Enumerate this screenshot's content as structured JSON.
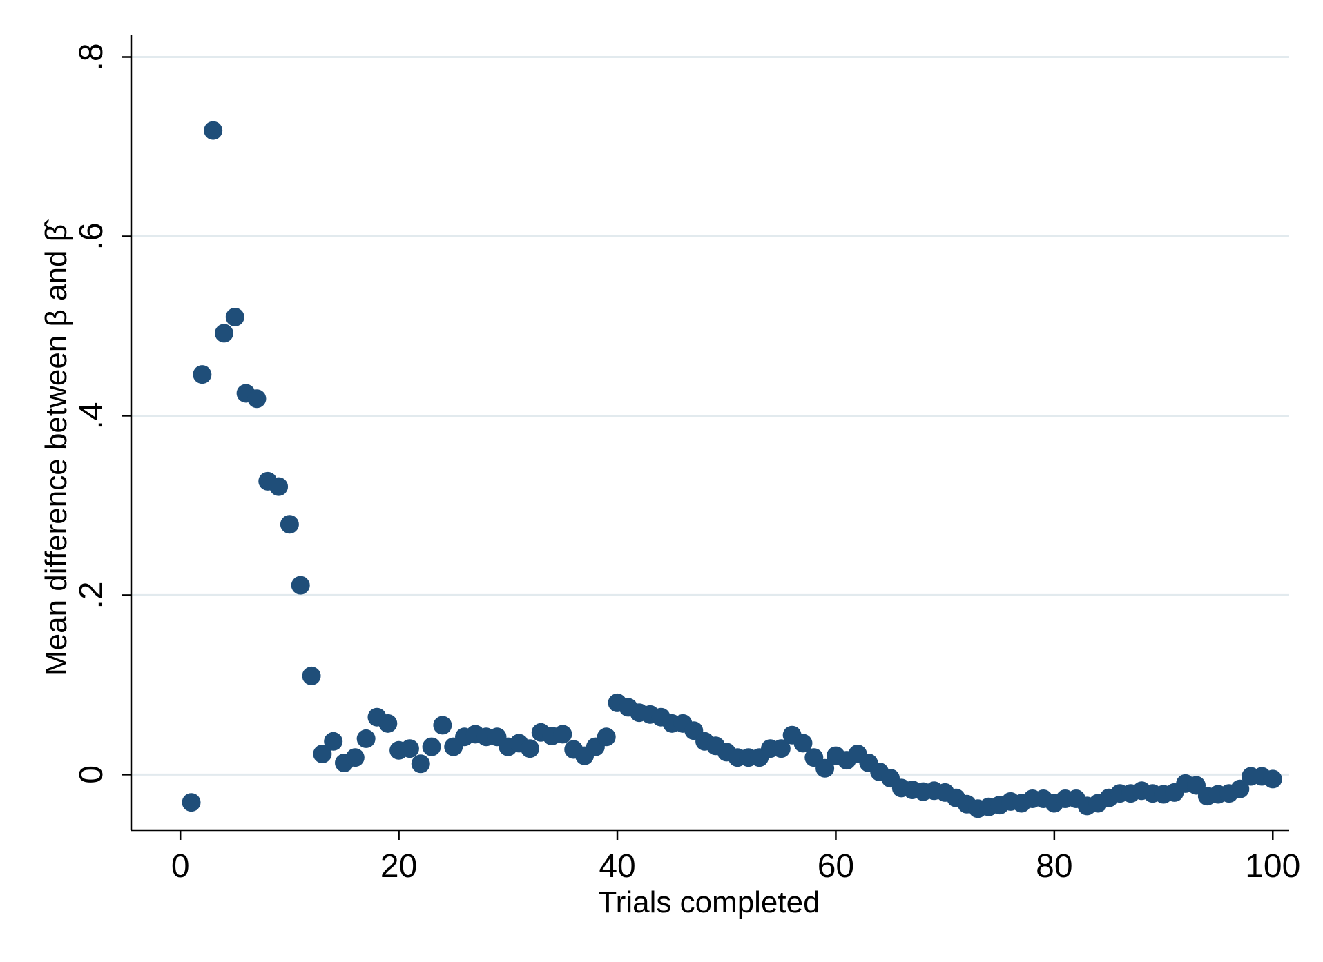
{
  "chart_data": {
    "type": "scatter",
    "title": "",
    "xlabel": "Trials completed",
    "ylabel": "Mean difference between β and β̂",
    "xlim": [
      -4.5,
      101.5
    ],
    "ylim": [
      -0.062,
      0.825
    ],
    "xticks": [
      0,
      20,
      40,
      60,
      80,
      100
    ],
    "xtick_labels": [
      "0",
      "20",
      "40",
      "60",
      "80",
      "100"
    ],
    "yticks": [
      0,
      0.2,
      0.4,
      0.6,
      0.8
    ],
    "ytick_labels": [
      "0",
      ".2",
      ".4",
      ".6",
      ".8"
    ],
    "grid": "horizontal",
    "colors": {
      "marker": "#1f4e79",
      "grid": "#e2eaee",
      "axis": "#000000",
      "background": "#ffffff"
    },
    "series": [
      {
        "name": "mean difference",
        "x": [
          1,
          2,
          3,
          4,
          5,
          6,
          7,
          8,
          9,
          10,
          11,
          12,
          13,
          14,
          15,
          16,
          17,
          18,
          19,
          20,
          21,
          22,
          23,
          24,
          25,
          26,
          27,
          28,
          29,
          30,
          31,
          32,
          33,
          34,
          35,
          36,
          37,
          38,
          39,
          40,
          41,
          42,
          43,
          44,
          45,
          46,
          47,
          48,
          49,
          50,
          51,
          52,
          53,
          54,
          55,
          56,
          57,
          58,
          59,
          60,
          61,
          62,
          63,
          64,
          65,
          66,
          67,
          68,
          69,
          70,
          71,
          72,
          73,
          74,
          75,
          76,
          77,
          78,
          79,
          80,
          81,
          82,
          83,
          84,
          85,
          86,
          87,
          88,
          89,
          90,
          91,
          92,
          93,
          94,
          95,
          96,
          97,
          98,
          99,
          100
        ],
        "y": [
          -0.031,
          0.446,
          0.718,
          0.492,
          0.51,
          0.425,
          0.419,
          0.327,
          0.321,
          0.279,
          0.211,
          0.11,
          0.023,
          0.037,
          0.013,
          0.019,
          0.04,
          0.064,
          0.057,
          0.027,
          0.029,
          0.012,
          0.031,
          0.055,
          0.031,
          0.042,
          0.045,
          0.042,
          0.042,
          0.031,
          0.035,
          0.029,
          0.047,
          0.043,
          0.045,
          0.028,
          0.021,
          0.031,
          0.042,
          0.08,
          0.075,
          0.069,
          0.067,
          0.064,
          0.057,
          0.057,
          0.049,
          0.037,
          0.032,
          0.025,
          0.019,
          0.019,
          0.019,
          0.029,
          0.029,
          0.044,
          0.035,
          0.019,
          0.007,
          0.021,
          0.016,
          0.023,
          0.013,
          0.003,
          -0.004,
          -0.015,
          -0.017,
          -0.019,
          -0.018,
          -0.02,
          -0.026,
          -0.033,
          -0.038,
          -0.036,
          -0.034,
          -0.03,
          -0.032,
          -0.027,
          -0.027,
          -0.032,
          -0.027,
          -0.027,
          -0.035,
          -0.032,
          -0.026,
          -0.021,
          -0.021,
          -0.018,
          -0.021,
          -0.022,
          -0.02,
          -0.01,
          -0.012,
          -0.024,
          -0.022,
          -0.021,
          -0.016,
          -0.002,
          -0.002,
          -0.005
        ]
      }
    ]
  }
}
